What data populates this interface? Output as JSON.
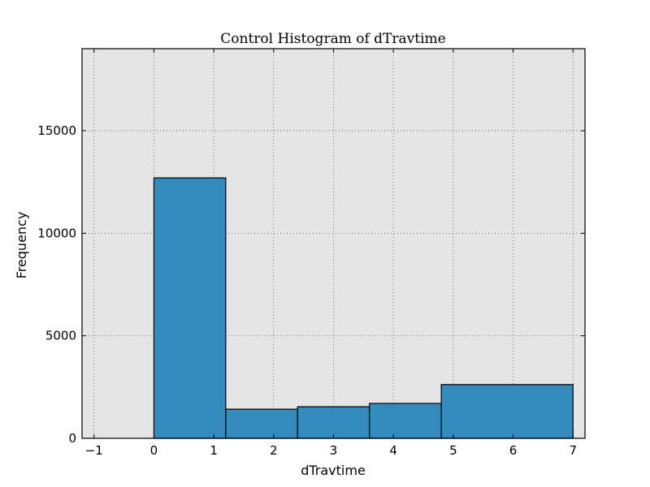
{
  "chart_data": {
    "type": "bar",
    "title": "Control Histogram of dTravtime",
    "xlabel": "dTravtime",
    "ylabel": "Frequency",
    "xlim": [
      -1.2,
      7.2
    ],
    "ylim": [
      0,
      19000
    ],
    "xticks": [
      -1,
      0,
      1,
      2,
      3,
      4,
      5,
      6,
      7
    ],
    "xtick_labels": [
      "−1",
      "0",
      "1",
      "2",
      "3",
      "4",
      "5",
      "6",
      "7"
    ],
    "yticks": [
      0,
      5000,
      10000,
      15000
    ],
    "ytick_labels": [
      "0",
      "5000",
      "10000",
      "15000"
    ],
    "bins": [
      {
        "x0": 0.0,
        "x1": 1.2,
        "value": 12700
      },
      {
        "x0": 1.2,
        "x1": 2.4,
        "value": 1420
      },
      {
        "x0": 2.4,
        "x1": 3.6,
        "value": 1540
      },
      {
        "x0": 3.6,
        "x1": 4.8,
        "value": 1700
      },
      {
        "x0": 4.8,
        "x1": 7.0,
        "value": 2620
      }
    ],
    "grid": true,
    "colors": {
      "bar": "#348abd",
      "bar_edge": "#000000",
      "plot_background": "#e5e5e5",
      "grid": "#555555"
    }
  }
}
